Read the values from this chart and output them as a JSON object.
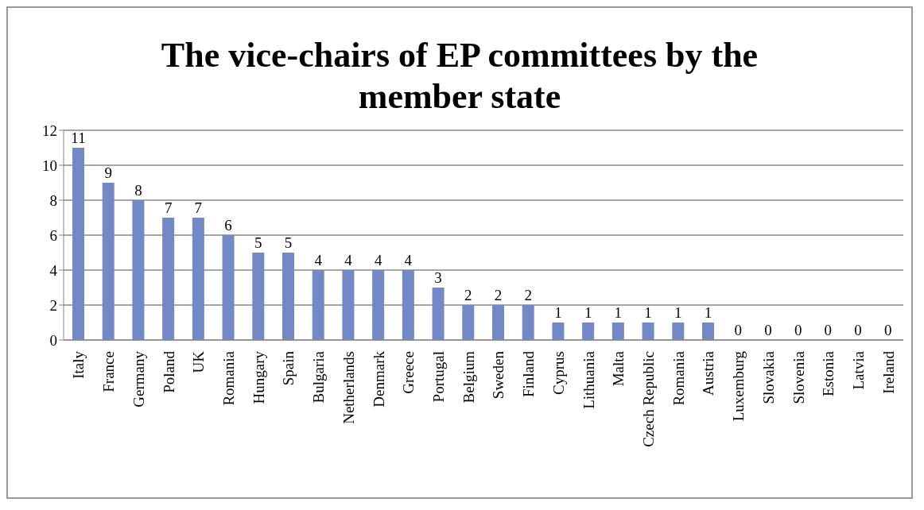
{
  "chart_data": {
    "type": "bar",
    "title": "The vice-chairs of EP committees by the member state",
    "categories": [
      "Italy",
      "France",
      "Germany",
      "Poland",
      "UK",
      "Romania",
      "Hungary",
      "Spain",
      "Bulgaria",
      "Netherlands",
      "Denmark",
      "Greece",
      "Portugal",
      "Belgium",
      "Sweden",
      "Finland",
      "Cyprus",
      "Lithuania",
      "Malta",
      "Czech Republic",
      "Romania",
      "Austria",
      "Luxemburg",
      "Slovakia",
      "Slovenia",
      "Estonia",
      "Latvia",
      "Ireland"
    ],
    "values": [
      11,
      9,
      8,
      7,
      7,
      6,
      5,
      5,
      4,
      4,
      4,
      4,
      3,
      2,
      2,
      2,
      1,
      1,
      1,
      1,
      1,
      1,
      0,
      0,
      0,
      0,
      0,
      0
    ],
    "color": "#7388c6",
    "ylim": [
      0,
      12
    ],
    "yticks": [
      0,
      2,
      4,
      6,
      8,
      10,
      12
    ],
    "grid": "y",
    "data_labels": true
  }
}
